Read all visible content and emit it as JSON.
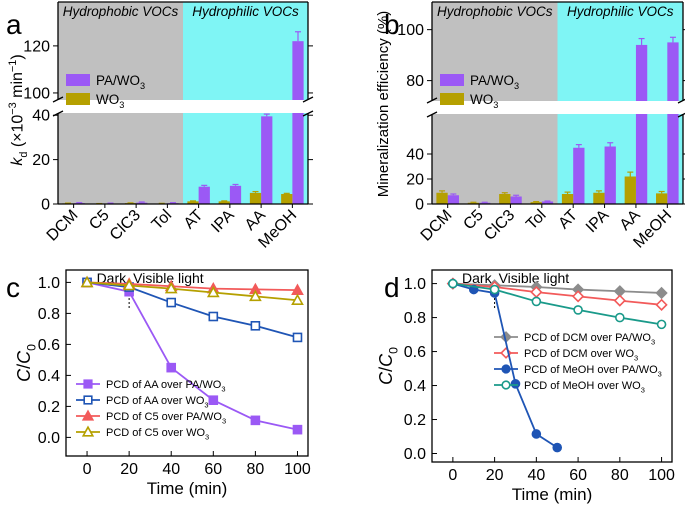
{
  "chart_data": [
    {
      "panel_label": "a",
      "type": "bar",
      "ylabel_main": "k",
      "ylabel_sub": "d",
      "ylabel_unit_open": " (×10",
      "ylabel_unit_exp": "−3",
      "ylabel_unit_close": " min",
      "ylabel_unit_exp2": "−1",
      "ylabel_unit_end": ")",
      "regions": [
        {
          "label": "Hydrophobic VOCs",
          "color": "#c0c0c0",
          "categories": [
            "DCM",
            "C5",
            "ClC3",
            "Tol"
          ]
        },
        {
          "label": "Hydrophilic VOCs",
          "color": "#7ff5f5",
          "categories": [
            "AT",
            "IPA",
            "AA",
            "MeOH"
          ]
        }
      ],
      "categories": [
        "DCM",
        "C5",
        "ClC3",
        "Tol",
        "AT",
        "IPA",
        "AA",
        "MeOH"
      ],
      "series": [
        {
          "name": "PA/WO3",
          "name_main": "PA/WO",
          "name_sub": "3",
          "color": "#9b59f5",
          "values": [
            0.4,
            0.2,
            0.6,
            0.4,
            7.8,
            8.2,
            39.5,
            122
          ],
          "errors": [
            0.2,
            0.2,
            0.3,
            0.2,
            0.6,
            0.6,
            1.0,
            4
          ]
        },
        {
          "name": "WO3",
          "name_main": "WO",
          "name_sub": "3",
          "color": "#b5a000",
          "values": [
            0.3,
            0.1,
            0.4,
            0.2,
            1.2,
            1.2,
            5.0,
            4.5
          ],
          "errors": [
            0.1,
            0.1,
            0.1,
            0.1,
            0.2,
            0.2,
            0.6,
            0.3
          ]
        }
      ],
      "axis_break": {
        "lower": [
          0,
          41
        ],
        "upper": [
          97,
          131
        ]
      },
      "yticks_lower": [
        0,
        20,
        40
      ],
      "yticks_upper": [
        100,
        120
      ]
    },
    {
      "panel_label": "b",
      "type": "bar",
      "ylabel": "Mineralization efficiency (%)",
      "regions": [
        {
          "label": "Hydrophobic VOCs",
          "color": "#c0c0c0",
          "categories": [
            "DCM",
            "C5",
            "ClC3",
            "Tol"
          ]
        },
        {
          "label": "Hydrophilic VOCs",
          "color": "#7ff5f5",
          "categories": [
            "AT",
            "IPA",
            "AA",
            "MeOH"
          ]
        }
      ],
      "categories": [
        "DCM",
        "C5",
        "ClC3",
        "Tol",
        "AT",
        "IPA",
        "AA",
        "MeOH"
      ],
      "series": [
        {
          "name": "PA/WO3",
          "name_main": "PA/WO",
          "name_sub": "3",
          "color": "#9b59f5",
          "values": [
            7,
            1,
            6,
            2,
            45,
            46,
            94,
            95
          ],
          "errors": [
            1.0,
            0.4,
            1.0,
            0.4,
            2.5,
            3.0,
            2.5,
            2.0
          ]
        },
        {
          "name": "WO3",
          "name_main": "WO",
          "name_sub": "3",
          "color": "#b5a000",
          "values": [
            9,
            1,
            8,
            1.5,
            8,
            9,
            22,
            8.5
          ],
          "errors": [
            1.5,
            0.4,
            1.0,
            0.4,
            1.5,
            1.5,
            3.5,
            1.5
          ]
        }
      ],
      "axis_break": {
        "lower": [
          0,
          72
        ],
        "upper": [
          72,
          103
        ]
      },
      "yticks_lower": [
        0,
        20,
        40
      ],
      "yticks_upper": [
        80,
        100
      ]
    },
    {
      "panel_label": "c",
      "type": "line",
      "xlabel": "Time (min)",
      "ylabel_main": "C",
      "ylabel_slash": "/",
      "ylabel_main2": "C",
      "ylabel_sub": "0",
      "xlim": [
        -10,
        105
      ],
      "ylim": [
        -0.12,
        1.08
      ],
      "xticks": [
        0,
        20,
        40,
        60,
        80,
        100
      ],
      "yticks": [
        0.0,
        0.2,
        0.4,
        0.6,
        0.8,
        1.0
      ],
      "annotation_dark": "Dark",
      "annotation_light": "Visible light",
      "light_on_time": 20,
      "x": [
        0,
        20,
        40,
        60,
        80,
        100
      ],
      "series": [
        {
          "name": "PCD of AA over PA/WO3",
          "name_main": "PCD of AA over PA/WO",
          "name_sub": "3",
          "color": "#9b59f5",
          "marker": "square-filled",
          "values": [
            1.0,
            0.94,
            0.45,
            0.24,
            0.11,
            0.05
          ]
        },
        {
          "name": "PCD of AA over WO3",
          "name_main": "PCD of AA over WO",
          "name_sub": "3",
          "color": "#1f55b5",
          "marker": "square-open",
          "values": [
            1.0,
            0.97,
            0.87,
            0.78,
            0.72,
            0.645
          ]
        },
        {
          "name": "PCD of C5 over PA/WO3",
          "name_main": "PCD of C5 over PA/WO",
          "name_sub": "3",
          "color": "#f25a5a",
          "marker": "triangle-filled",
          "values": [
            1.0,
            0.99,
            0.975,
            0.96,
            0.955,
            0.95
          ]
        },
        {
          "name": "PCD of C5 over WO3",
          "name_main": "PCD of C5 over WO",
          "name_sub": "3",
          "color": "#b5a000",
          "marker": "triangle-open",
          "values": [
            1.0,
            0.98,
            0.96,
            0.935,
            0.91,
            0.885
          ]
        }
      ]
    },
    {
      "panel_label": "d",
      "type": "line",
      "xlabel": "Time (min)",
      "ylabel_main": "C",
      "ylabel_slash": "/",
      "ylabel_main2": "C",
      "ylabel_sub": "0",
      "xlim": [
        -10,
        105
      ],
      "ylim": [
        -0.05,
        1.08
      ],
      "xticks": [
        0,
        20,
        40,
        60,
        80,
        100
      ],
      "yticks": [
        0.0,
        0.2,
        0.4,
        0.6,
        0.8,
        1.0
      ],
      "annotation_dark": "Dark",
      "annotation_light": "Visible light",
      "light_on_time": 20,
      "series": [
        {
          "name": "PCD of DCM over PA/WO3",
          "name_main": "PCD of DCM over PA/WO",
          "name_sub": "3",
          "color": "#8c8c8c",
          "marker": "diamond-filled",
          "x": [
            0,
            20,
            40,
            60,
            80,
            100
          ],
          "values": [
            1.0,
            0.99,
            0.98,
            0.965,
            0.955,
            0.945
          ]
        },
        {
          "name": "PCD of DCM over WO3",
          "name_main": "PCD of DCM over WO",
          "name_sub": "3",
          "color": "#f25a5a",
          "marker": "diamond-open",
          "x": [
            0,
            20,
            40,
            60,
            80,
            100
          ],
          "values": [
            1.0,
            0.98,
            0.95,
            0.925,
            0.9,
            0.875
          ]
        },
        {
          "name": "PCD of MeOH over PA/WO3",
          "name_main": "PCD of MeOH over PA/WO",
          "name_sub": "3",
          "color": "#1f55b5",
          "marker": "circle-filled",
          "x": [
            0,
            10,
            20,
            30,
            40,
            50
          ],
          "values": [
            1.0,
            0.965,
            0.945,
            0.41,
            0.115,
            0.035
          ]
        },
        {
          "name": "PCD of MeOH over WO3",
          "name_main": "PCD of MeOH over WO",
          "name_sub": "3",
          "color": "#1a9a8a",
          "marker": "circle-open",
          "x": [
            0,
            20,
            40,
            60,
            80,
            100
          ],
          "values": [
            1.0,
            0.965,
            0.895,
            0.845,
            0.8,
            0.76
          ]
        }
      ]
    }
  ]
}
